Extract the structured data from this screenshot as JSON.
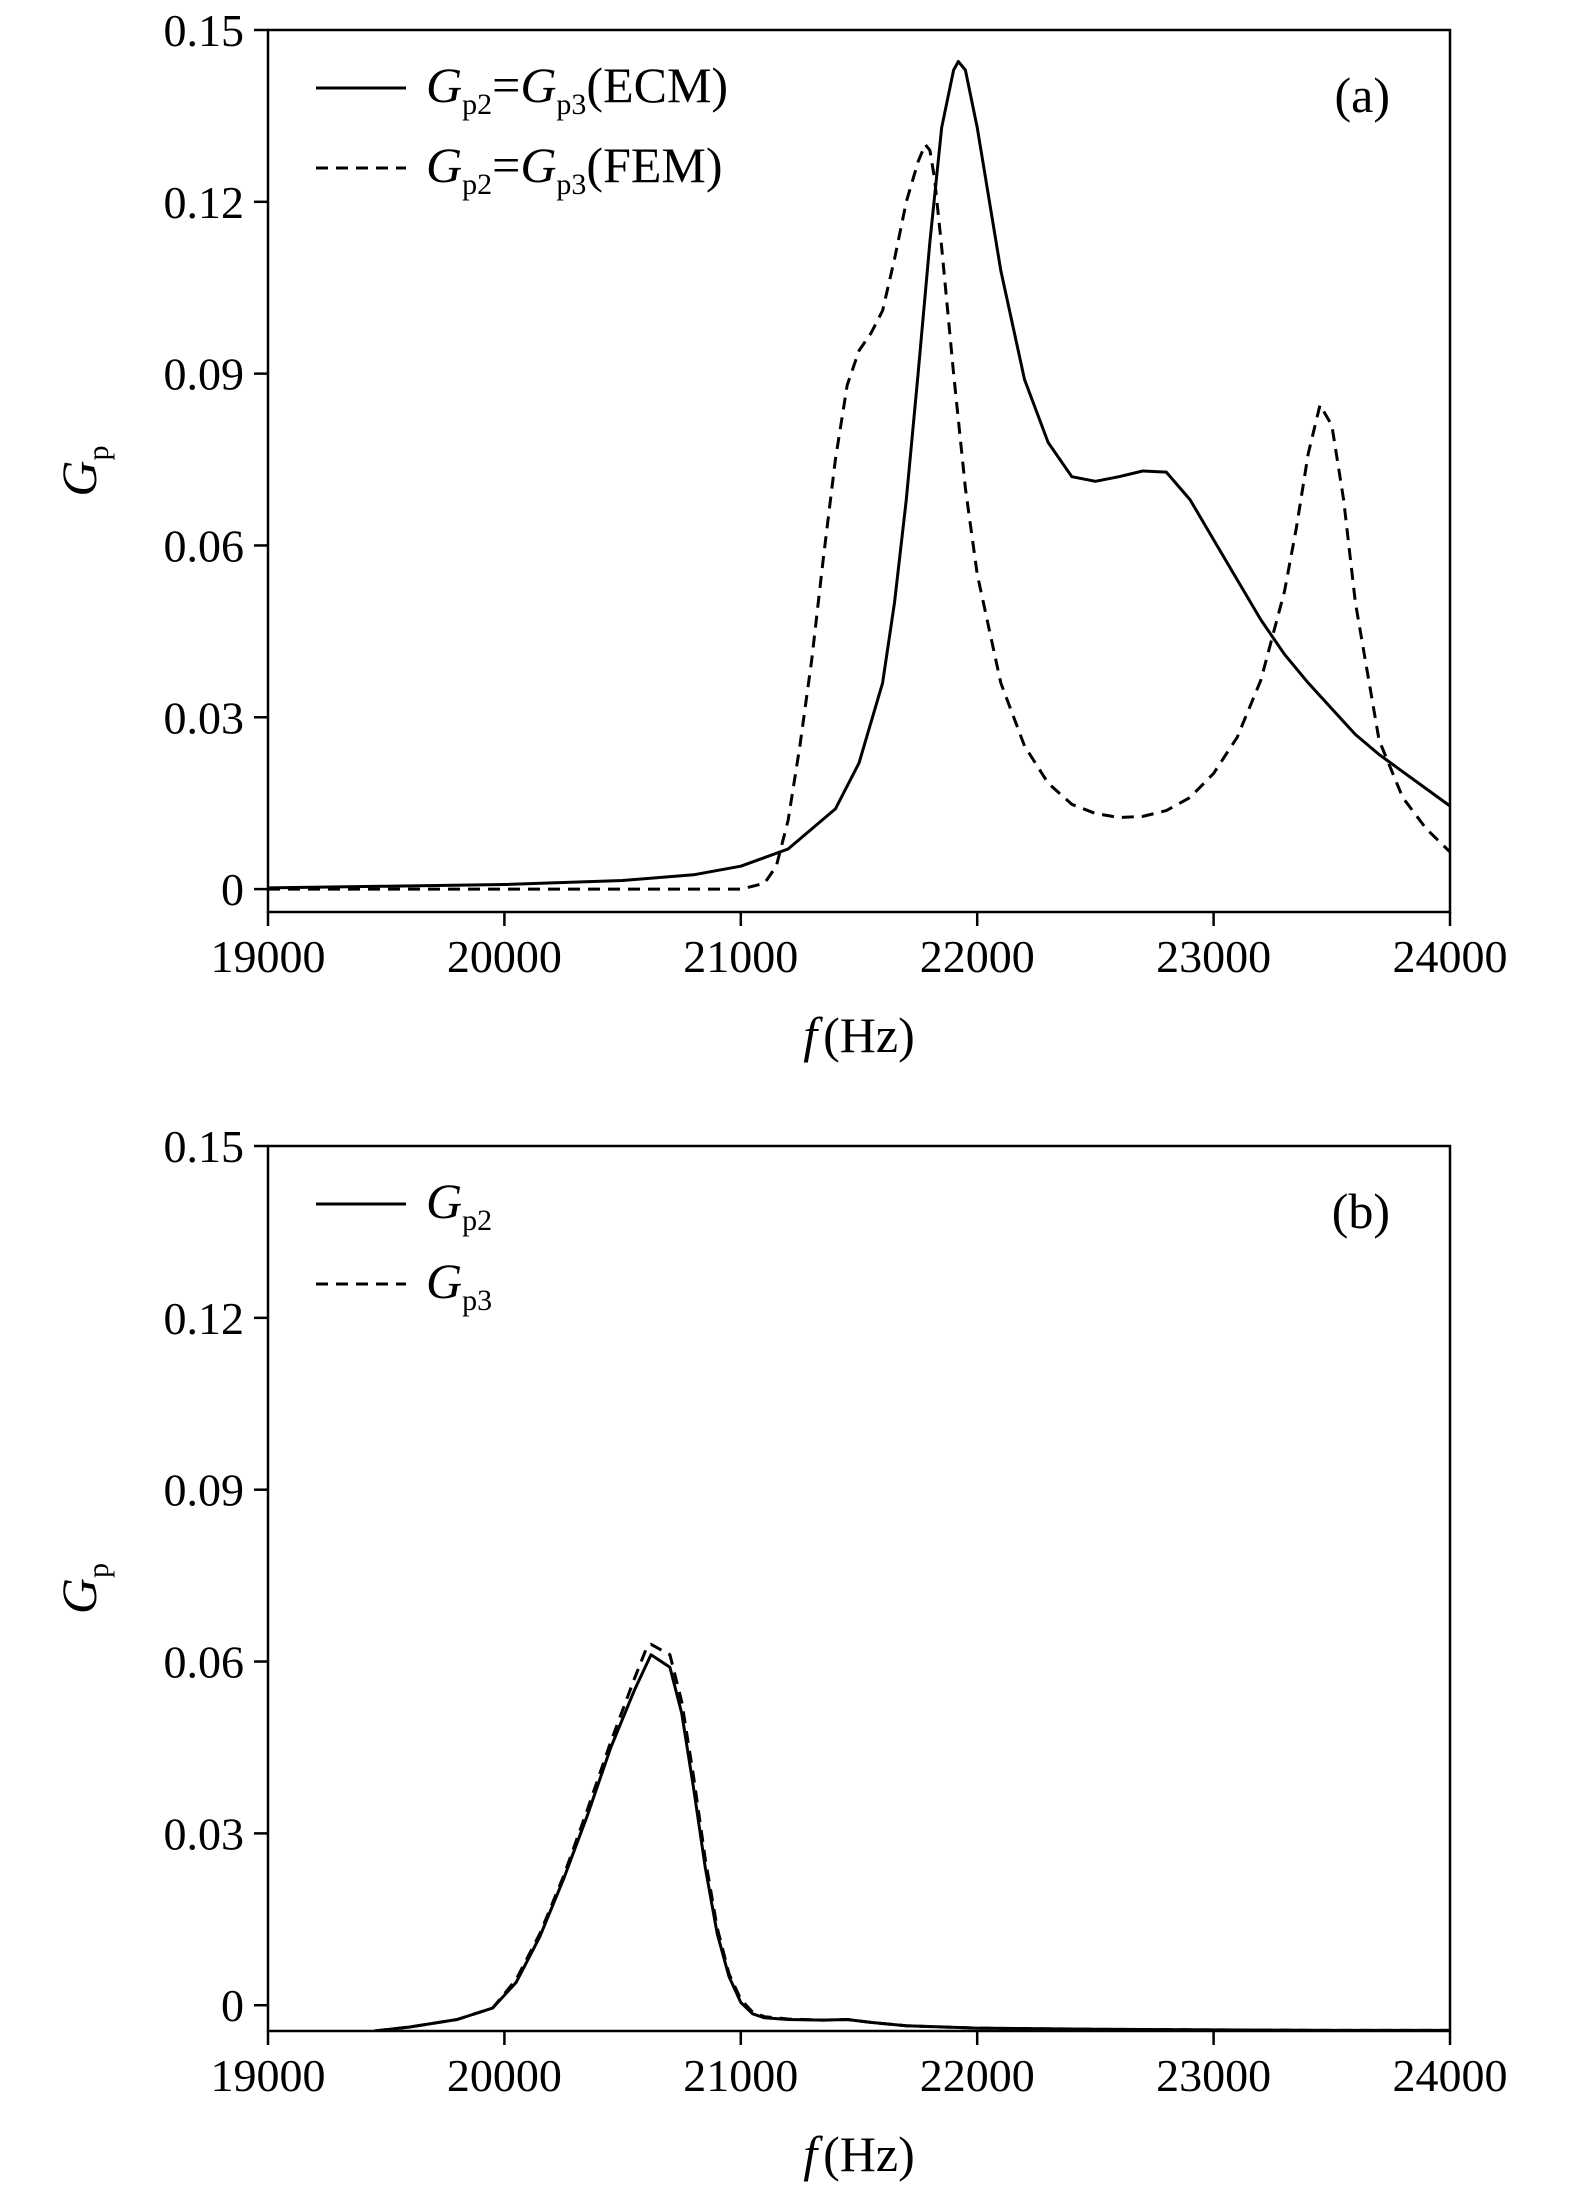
{
  "chart_data": [
    {
      "type": "line",
      "panel_label": "(a)",
      "xlabel": {
        "var": "f",
        "unit": "(Hz)"
      },
      "ylabel": {
        "main": "G",
        "sub": "p"
      },
      "xlim": [
        19000,
        24000
      ],
      "ylim": [
        -0.004,
        0.15
      ],
      "xticks": [
        19000,
        20000,
        21000,
        22000,
        23000,
        24000
      ],
      "xtick_labels": [
        "19000",
        "20000",
        "21000",
        "22000",
        "23000",
        "24000"
      ],
      "yticks": [
        0,
        0.03,
        0.06,
        0.09,
        0.12,
        0.15
      ],
      "ytick_labels": [
        "0",
        "0.03",
        "0.06",
        "0.09",
        "0.12",
        "0.15"
      ],
      "grid": false,
      "legend_position": "top-left",
      "series": [
        {
          "name": "Gp2=Gp3(ECM)",
          "legend": [
            {
              "t": "G",
              "italic": true
            },
            {
              "t": "p2",
              "sub": true
            },
            {
              "t": "="
            },
            {
              "t": "G",
              "italic": true
            },
            {
              "t": "p3",
              "sub": true
            },
            {
              "t": "(ECM)"
            }
          ],
          "style": "solid",
          "x": [
            19000,
            19500,
            20000,
            20500,
            20800,
            21000,
            21200,
            21400,
            21500,
            21600,
            21650,
            21700,
            21750,
            21800,
            21850,
            21900,
            21920,
            21950,
            22000,
            22100,
            22200,
            22300,
            22400,
            22500,
            22600,
            22700,
            22800,
            22900,
            23000,
            23100,
            23200,
            23300,
            23400,
            23500,
            23600,
            23700,
            23800,
            23900,
            24000
          ],
          "y": [
            0.0002,
            0.0005,
            0.0008,
            0.0015,
            0.0025,
            0.004,
            0.007,
            0.014,
            0.022,
            0.036,
            0.05,
            0.068,
            0.09,
            0.113,
            0.133,
            0.143,
            0.1445,
            0.143,
            0.133,
            0.108,
            0.089,
            0.078,
            0.072,
            0.0712,
            0.072,
            0.073,
            0.0728,
            0.068,
            0.061,
            0.054,
            0.047,
            0.041,
            0.036,
            0.0315,
            0.027,
            0.0235,
            0.0205,
            0.0175,
            0.0145
          ]
        },
        {
          "name": "Gp2=Gp3(FEM)",
          "legend": [
            {
              "t": "G",
              "italic": true
            },
            {
              "t": "p2",
              "sub": true
            },
            {
              "t": "="
            },
            {
              "t": "G",
              "italic": true
            },
            {
              "t": "p3",
              "sub": true
            },
            {
              "t": "(FEM)"
            }
          ],
          "style": "dashed",
          "x": [
            19000,
            19500,
            20000,
            20500,
            21000,
            21100,
            21150,
            21200,
            21250,
            21300,
            21350,
            21400,
            21450,
            21500,
            21550,
            21600,
            21650,
            21700,
            21750,
            21780,
            21800,
            21820,
            21850,
            21900,
            21950,
            22000,
            22100,
            22200,
            22300,
            22400,
            22500,
            22600,
            22700,
            22800,
            22900,
            23000,
            23100,
            23200,
            23300,
            23350,
            23400,
            23450,
            23500,
            23550,
            23600,
            23700,
            23800,
            23900,
            24000
          ],
          "y": [
            0,
            0,
            0,
            0,
            0,
            0.001,
            0.004,
            0.012,
            0.025,
            0.04,
            0.058,
            0.075,
            0.088,
            0.094,
            0.097,
            0.101,
            0.11,
            0.12,
            0.127,
            0.13,
            0.129,
            0.124,
            0.112,
            0.09,
            0.07,
            0.055,
            0.036,
            0.025,
            0.0185,
            0.0148,
            0.0132,
            0.0125,
            0.0127,
            0.0137,
            0.016,
            0.0202,
            0.0265,
            0.0365,
            0.052,
            0.063,
            0.076,
            0.0845,
            0.081,
            0.068,
            0.05,
            0.026,
            0.016,
            0.0105,
            0.0065
          ]
        }
      ]
    },
    {
      "type": "line",
      "panel_label": "(b)",
      "xlabel": {
        "var": "f",
        "unit": "(Hz)"
      },
      "ylabel": {
        "main": "G",
        "sub": "p"
      },
      "xlim": [
        19000,
        24000
      ],
      "ylim": [
        -0.0045,
        0.15
      ],
      "xticks": [
        19000,
        20000,
        21000,
        22000,
        23000,
        24000
      ],
      "xtick_labels": [
        "19000",
        "20000",
        "21000",
        "22000",
        "23000",
        "24000"
      ],
      "yticks": [
        0,
        0.03,
        0.06,
        0.09,
        0.12,
        0.15
      ],
      "ytick_labels": [
        "0",
        "0.03",
        "0.06",
        "0.09",
        "0.12",
        "0.15"
      ],
      "grid": false,
      "legend_position": "top-left",
      "series": [
        {
          "name": "Gp2",
          "legend": [
            {
              "t": "G",
              "italic": true
            },
            {
              "t": "p2",
              "sub": true
            }
          ],
          "style": "solid",
          "x": [
            19450,
            19600,
            19800,
            19950,
            20050,
            20150,
            20250,
            20350,
            20450,
            20550,
            20620,
            20700,
            20750,
            20800,
            20850,
            20900,
            20950,
            21000,
            21050,
            21100,
            21200,
            21350,
            21450,
            21550,
            21700,
            22000,
            22500,
            23000,
            23500,
            24000
          ],
          "y": [
            -0.0045,
            -0.0038,
            -0.0025,
            -0.0005,
            0.004,
            0.012,
            0.022,
            0.033,
            0.045,
            0.055,
            0.0612,
            0.059,
            0.051,
            0.038,
            0.024,
            0.0125,
            0.005,
            0.0005,
            -0.0015,
            -0.0022,
            -0.0025,
            -0.0026,
            -0.0025,
            -0.003,
            -0.0036,
            -0.004,
            -0.0042,
            -0.0043,
            -0.0044,
            -0.0044
          ]
        },
        {
          "name": "Gp3",
          "legend": [
            {
              "t": "G",
              "italic": true
            },
            {
              "t": "p3",
              "sub": true
            }
          ],
          "style": "dashed",
          "x": [
            19450,
            19600,
            19800,
            19950,
            20050,
            20150,
            20250,
            20350,
            20450,
            20550,
            20600,
            20620,
            20700,
            20750,
            20800,
            20850,
            20900,
            20950,
            21000,
            21050,
            21100,
            21200,
            21350,
            21450,
            21550,
            21700,
            22000,
            22500,
            23000,
            23500,
            24000
          ],
          "y": [
            -0.0045,
            -0.0038,
            -0.0025,
            -0.0005,
            0.0045,
            0.0125,
            0.0225,
            0.034,
            0.046,
            0.057,
            0.0622,
            0.063,
            0.0612,
            0.053,
            0.04,
            0.0255,
            0.0135,
            0.0055,
            0.001,
            -0.0012,
            -0.002,
            -0.0024,
            -0.0026,
            -0.0025,
            -0.003,
            -0.0036,
            -0.004,
            -0.0042,
            -0.0043,
            -0.0044,
            -0.0044
          ]
        }
      ]
    }
  ]
}
